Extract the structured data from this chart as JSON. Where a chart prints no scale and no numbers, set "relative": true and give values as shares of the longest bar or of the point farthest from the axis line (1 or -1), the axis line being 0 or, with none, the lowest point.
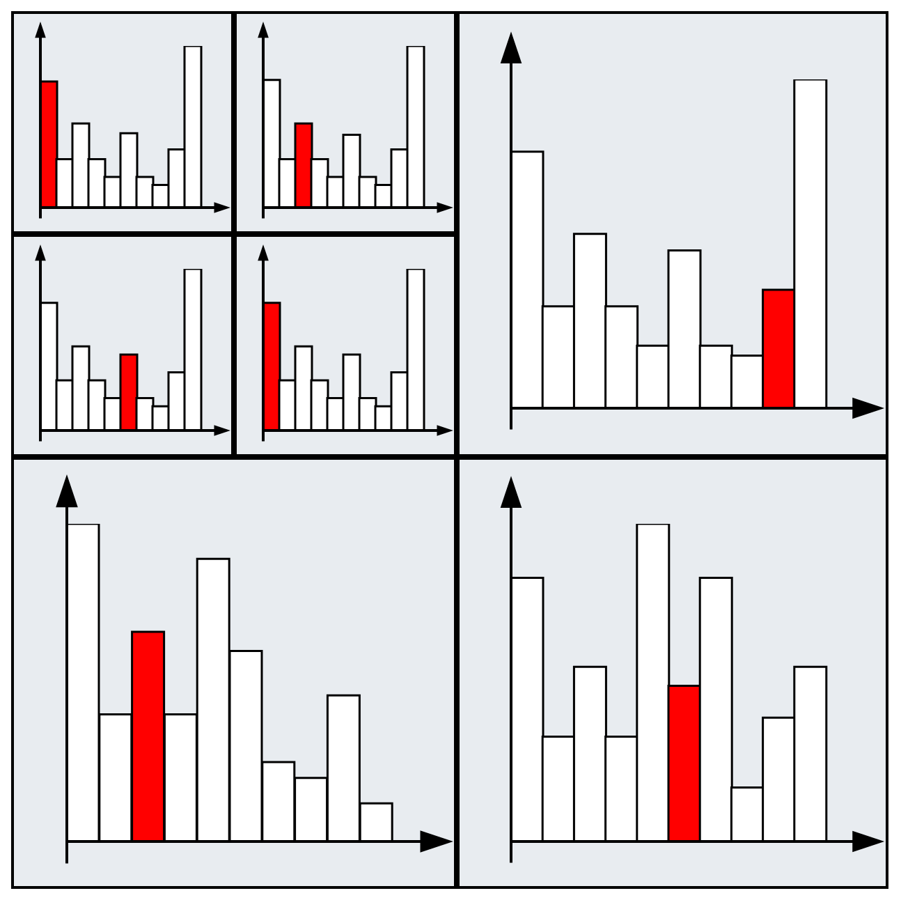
{
  "chart_data": [
    {
      "type": "bar",
      "relative": true,
      "categories": [
        null,
        null,
        null,
        null,
        null,
        null,
        null,
        null,
        null,
        null
      ],
      "values": [
        0.78,
        0.3,
        0.52,
        0.3,
        0.19,
        0.46,
        0.19,
        0.14,
        0.36,
        1
      ],
      "colors": [
        "#ff0000",
        "#ffffff",
        "#ffffff",
        "#ffffff",
        "#ffffff",
        "#ffffff",
        "#ffffff",
        "#ffffff",
        "#ffffff",
        "#ffffff"
      ]
    },
    {
      "type": "bar",
      "relative": true,
      "categories": [
        null,
        null,
        null,
        null,
        null,
        null,
        null,
        null,
        null,
        null
      ],
      "values": [
        0.79,
        0.3,
        0.52,
        0.3,
        0.19,
        0.45,
        0.19,
        0.14,
        0.36,
        1
      ],
      "colors": [
        "#ffffff",
        "#ffffff",
        "#ff0000",
        "#ffffff",
        "#ffffff",
        "#ffffff",
        "#ffffff",
        "#ffffff",
        "#ffffff",
        "#ffffff"
      ]
    },
    {
      "type": "bar",
      "relative": true,
      "categories": [
        null,
        null,
        null,
        null,
        null,
        null,
        null,
        null,
        null,
        null
      ],
      "values": [
        0.79,
        0.31,
        0.52,
        0.31,
        0.2,
        0.47,
        0.2,
        0.15,
        0.36,
        1
      ],
      "colors": [
        "#ffffff",
        "#ffffff",
        "#ffffff",
        "#ffffff",
        "#ffffff",
        "#ff0000",
        "#ffffff",
        "#ffffff",
        "#ffffff",
        "#ffffff"
      ]
    },
    {
      "type": "bar",
      "relative": true,
      "categories": [
        null,
        null,
        null,
        null,
        null,
        null,
        null,
        null,
        null,
        null
      ],
      "values": [
        0.79,
        0.31,
        0.52,
        0.31,
        0.2,
        0.47,
        0.2,
        0.15,
        0.36,
        1
      ],
      "colors": [
        "#ff0000",
        "#ffffff",
        "#ffffff",
        "#ffffff",
        "#ffffff",
        "#ffffff",
        "#ffffff",
        "#ffffff",
        "#ffffff",
        "#ffffff"
      ]
    },
    {
      "type": "bar",
      "relative": true,
      "categories": [
        null,
        null,
        null,
        null,
        null,
        null,
        null,
        null,
        null,
        null
      ],
      "values": [
        0.78,
        0.31,
        0.53,
        0.31,
        0.19,
        0.48,
        0.19,
        0.16,
        0.36,
        1
      ],
      "colors": [
        "#ffffff",
        "#ffffff",
        "#ffffff",
        "#ffffff",
        "#ffffff",
        "#ffffff",
        "#ffffff",
        "#ffffff",
        "#ff0000",
        "#ffffff"
      ]
    },
    {
      "type": "bar",
      "relative": true,
      "categories": [
        null,
        null,
        null,
        null,
        null,
        null,
        null,
        null,
        null,
        null
      ],
      "values": [
        1,
        0.4,
        0.66,
        0.4,
        0.89,
        0.6,
        0.25,
        0.2,
        0.46,
        0.12
      ],
      "colors": [
        "#ffffff",
        "#ffffff",
        "#ff0000",
        "#ffffff",
        "#ffffff",
        "#ffffff",
        "#ffffff",
        "#ffffff",
        "#ffffff",
        "#ffffff"
      ]
    },
    {
      "type": "bar",
      "relative": true,
      "categories": [
        null,
        null,
        null,
        null,
        null,
        null,
        null,
        null,
        null,
        null
      ],
      "values": [
        0.83,
        0.33,
        0.55,
        0.33,
        1,
        0.49,
        0.83,
        0.17,
        0.39,
        0.55
      ],
      "colors": [
        "#ffffff",
        "#ffffff",
        "#ffffff",
        "#ffffff",
        "#ffffff",
        "#ff0000",
        "#ffffff",
        "#ffffff",
        "#ffffff",
        "#ffffff"
      ]
    }
  ]
}
